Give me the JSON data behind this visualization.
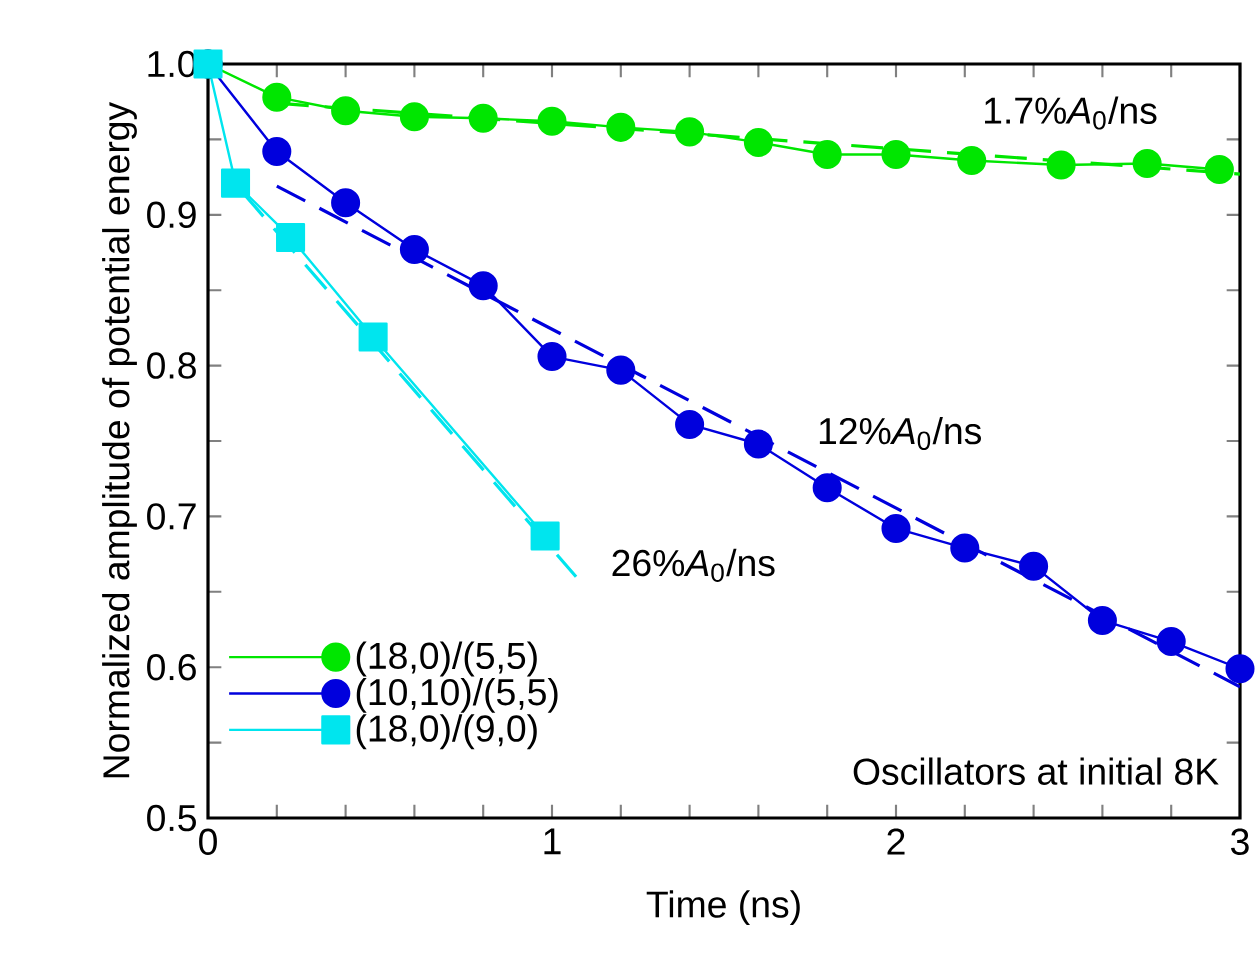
{
  "chart_data": {
    "type": "line",
    "xlabel": "Time  (ns)",
    "ylabel": "Normalized amplitude of potential energy",
    "xlim": [
      0,
      3
    ],
    "ylim": [
      0.5,
      1.0
    ],
    "xticks": [
      0,
      {
        "value": 0.2,
        "label": null
      },
      {
        "value": 0.4,
        "label": null
      },
      {
        "value": 0.6,
        "label": null
      },
      {
        "value": 0.8,
        "label": null
      },
      1,
      {
        "value": 1.2,
        "label": null
      },
      {
        "value": 1.4,
        "label": null
      },
      {
        "value": 1.6,
        "label": null
      },
      {
        "value": 1.8,
        "label": null
      },
      2,
      {
        "value": 2.2,
        "label": null
      },
      {
        "value": 2.4,
        "label": null
      },
      {
        "value": 2.6,
        "label": null
      },
      {
        "value": 2.8,
        "label": null
      },
      3
    ],
    "yticks": [
      0.5,
      {
        "value": 0.55,
        "label": null
      },
      0.6,
      {
        "value": 0.65,
        "label": null
      },
      0.7,
      {
        "value": 0.75,
        "label": null
      },
      0.8,
      {
        "value": 0.85,
        "label": null
      },
      0.9,
      {
        "value": 0.95,
        "label": null
      },
      {
        "value": 1.0,
        "label": "1.0"
      }
    ],
    "grid": false,
    "legend": "bottom left",
    "series": [
      {
        "name": "(18,0)/(5,5)",
        "color": "#00e600",
        "marker": "circle",
        "line_style": "solid",
        "x": [
          0,
          0.2,
          0.4,
          0.6,
          0.8,
          1.0,
          1.2,
          1.4,
          1.6,
          1.8,
          2.0,
          2.22,
          2.48,
          2.73,
          2.94
        ],
        "values": [
          1.0,
          0.978,
          0.969,
          0.965,
          0.964,
          0.962,
          0.958,
          0.955,
          0.948,
          0.94,
          0.94,
          0.936,
          0.933,
          0.934,
          0.93
        ]
      },
      {
        "name": "(10,10)/(5,5)",
        "color": "#0000dd",
        "marker": "circle",
        "line_style": "solid",
        "x": [
          0,
          0.2,
          0.4,
          0.6,
          0.8,
          1.0,
          1.2,
          1.4,
          1.6,
          1.8,
          2.0,
          2.2,
          2.4,
          2.6,
          2.8,
          3.0
        ],
        "values": [
          1.0,
          0.942,
          0.908,
          0.877,
          0.853,
          0.806,
          0.797,
          0.761,
          0.748,
          0.719,
          0.692,
          0.679,
          0.667,
          0.631,
          0.617,
          0.599
        ]
      },
      {
        "name": "(18,0)/(9,0)",
        "color": "#00e5ee",
        "marker": "square",
        "line_style": "solid",
        "x": [
          0,
          0.08,
          0.24,
          0.48,
          0.98
        ],
        "values": [
          1.0,
          0.921,
          0.885,
          0.819,
          0.687
        ]
      },
      {
        "type": "line",
        "color": "#00e600",
        "marker": "none",
        "line_style": "dashed",
        "x": [
          0.2,
          3.0
        ],
        "values": [
          0.974,
          0.927
        ]
      },
      {
        "type": "line",
        "color": "#0000dd",
        "marker": "none",
        "line_style": "dashed",
        "x": [
          0.2,
          3.0
        ],
        "values": [
          0.919,
          0.587
        ]
      },
      {
        "type": "line",
        "color": "#00e5ee",
        "marker": "none",
        "line_style": "dashed",
        "x": [
          0.1,
          1.07
        ],
        "values": [
          0.915,
          0.66
        ]
      }
    ],
    "annotations": [
      "1.7%*A*$_{0}$/ns",
      "12%*A*$_{0}$/ns",
      "26%*A*$_{0}$/ns",
      "Oscillators at initial 8K"
    ]
  }
}
